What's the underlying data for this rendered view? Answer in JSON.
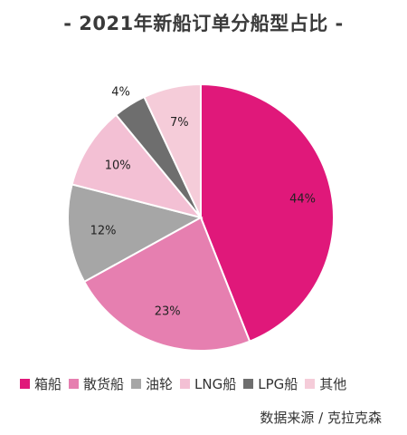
{
  "chart_data": {
    "type": "pie",
    "title": "- 2021年新船订单分船型占比 -",
    "categories": [
      "箱船",
      "散货船",
      "油轮",
      "LNG船",
      "LPG船",
      "其他"
    ],
    "values": [
      44,
      23,
      12,
      10,
      4,
      7
    ],
    "labels": [
      "44%",
      "23%",
      "12%",
      "10%",
      "4%",
      "7%"
    ],
    "colors": [
      "#e0187a",
      "#e67fb0",
      "#a6a6a6",
      "#f3c0d4",
      "#6e6e6e",
      "#f5ccd9"
    ],
    "legend_position": "bottom",
    "start_angle_deg": 0,
    "direction": "clockwise"
  },
  "source": "数据来源 / 克拉克森"
}
